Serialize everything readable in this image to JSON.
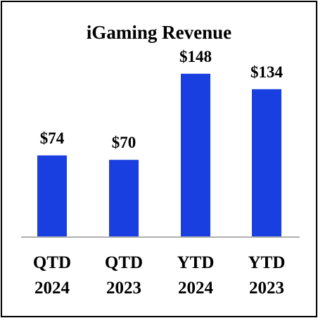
{
  "chart_data": {
    "type": "bar",
    "title": "iGaming Revenue",
    "categories": [
      [
        "QTD",
        "2024"
      ],
      [
        "QTD",
        "2023"
      ],
      [
        "YTD",
        "2024"
      ],
      [
        "YTD",
        "2023"
      ]
    ],
    "values": [
      74,
      70,
      148,
      134
    ],
    "data_labels": [
      "$74",
      "$70",
      "$148",
      "$134"
    ],
    "ylim": [
      0,
      167
    ],
    "grid": false,
    "legend": "none",
    "colors": {
      "bar": "#1a3fe0",
      "axis": "#b0b0b0",
      "text": "#000000",
      "border": "#000000"
    }
  }
}
